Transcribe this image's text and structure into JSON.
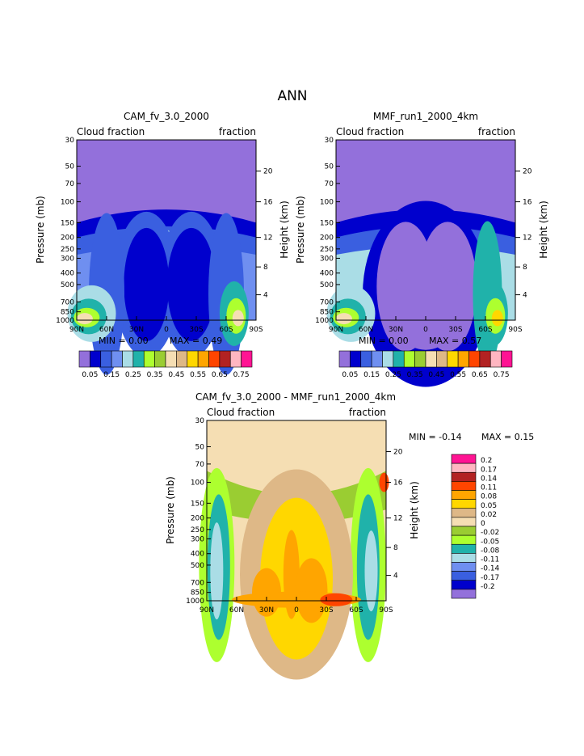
{
  "page_title": "ANN",
  "colors": {
    "abs_levels": [
      "#9370db",
      "#0000cd",
      "#3a5fe0",
      "#6f8ff0",
      "#aadde6",
      "#20b2aa",
      "#adff2f",
      "#9acd32",
      "#f5deb3",
      "#deb887",
      "#ffd700",
      "#ffa500",
      "#ff4500",
      "#b22222",
      "#ffb6c1",
      "#ff1493"
    ],
    "diff_levels": [
      "#9370db",
      "#0000cd",
      "#3a5fe0",
      "#6f8ff0",
      "#aadde6",
      "#20b2aa",
      "#adff2f",
      "#9acd32",
      "#f5deb3",
      "#deb887",
      "#ffd700",
      "#ffa500",
      "#ff4500",
      "#b22222",
      "#ffb6c1",
      "#ff1493"
    ]
  },
  "chart_data": [
    {
      "type": "heatmap",
      "title": "CAM_fv_3.0_2000",
      "left_label": "Cloud fraction",
      "right_label": "fraction",
      "ylabel": "Pressure (mb)",
      "ylabel_right": "Height (km)",
      "x_ticks": [
        "90N",
        "60N",
        "30N",
        "0",
        "30S",
        "60S",
        "90S"
      ],
      "y_ticks": [
        "30",
        "50",
        "70",
        "100",
        "150",
        "200",
        "250",
        "300",
        "400",
        "500",
        "700",
        "850",
        "1000"
      ],
      "y_ticks_right": [
        "20",
        "16",
        "12",
        "8",
        "4"
      ],
      "min_label": "MIN =   0.00",
      "max_label": "MAX =   0.49",
      "colorbar_labels": [
        "0.05",
        "0.15",
        "0.25",
        "0.35",
        "0.45",
        "0.55",
        "0.65",
        "0.75"
      ],
      "ylim": [
        1000,
        30
      ],
      "xlim": [
        90,
        -90
      ]
    },
    {
      "type": "heatmap",
      "title": "MMF_run1_2000_4km",
      "left_label": "Cloud fraction",
      "right_label": "fraction",
      "ylabel": "Pressure (mb)",
      "ylabel_right": "Height (km)",
      "x_ticks": [
        "90N",
        "60N",
        "30N",
        "0",
        "30S",
        "60S",
        "90S"
      ],
      "y_ticks": [
        "30",
        "50",
        "70",
        "100",
        "150",
        "200",
        "250",
        "300",
        "400",
        "500",
        "700",
        "850",
        "1000"
      ],
      "y_ticks_right": [
        "20",
        "16",
        "12",
        "8",
        "4"
      ],
      "min_label": "MIN =   0.00",
      "max_label": "MAX =   0.57",
      "colorbar_labels": [
        "0.05",
        "0.15",
        "0.25",
        "0.35",
        "0.45",
        "0.55",
        "0.65",
        "0.75"
      ],
      "ylim": [
        1000,
        30
      ],
      "xlim": [
        90,
        -90
      ]
    },
    {
      "type": "heatmap",
      "title": "CAM_fv_3.0_2000 - MMF_run1_2000_4km",
      "left_label": "Cloud fraction",
      "right_label": "fraction",
      "ylabel": "Pressure (mb)",
      "ylabel_right": "Height (km)",
      "x_ticks": [
        "90N",
        "60N",
        "30N",
        "0",
        "30S",
        "60S",
        "90S"
      ],
      "y_ticks": [
        "30",
        "50",
        "70",
        "100",
        "150",
        "200",
        "250",
        "300",
        "400",
        "500",
        "700",
        "850",
        "1000"
      ],
      "y_ticks_right": [
        "20",
        "16",
        "12",
        "8",
        "4"
      ],
      "min_label": "MIN =  -0.14",
      "max_label": "MAX =    0.15",
      "colorbar_labels": [
        "0.2",
        "0.17",
        "0.14",
        "0.11",
        "0.08",
        "0.05",
        "0.02",
        "0",
        "-0.02",
        "-0.05",
        "-0.08",
        "-0.11",
        "-0.14",
        "-0.17",
        "-0.2"
      ],
      "ylim": [
        1000,
        30
      ],
      "xlim": [
        90,
        -90
      ]
    }
  ]
}
